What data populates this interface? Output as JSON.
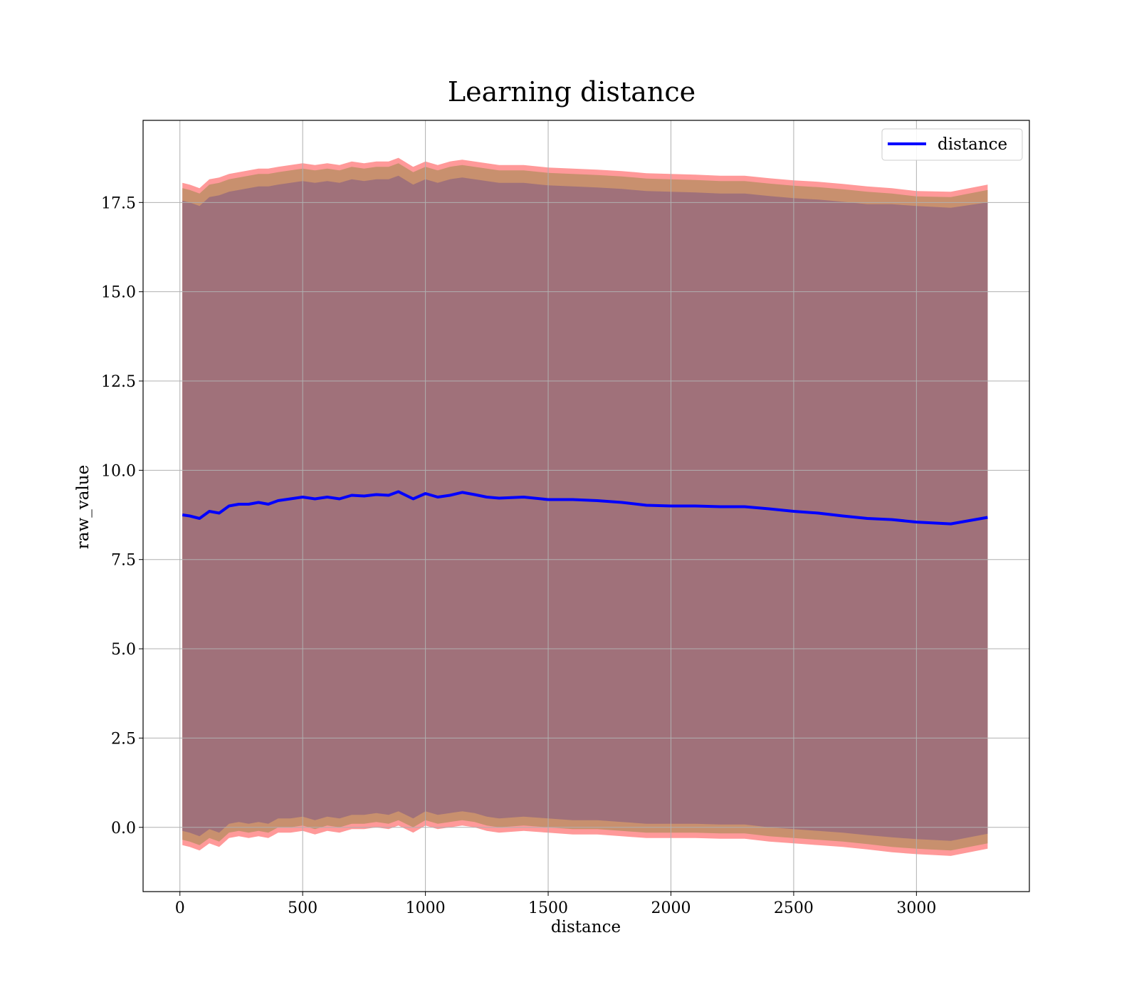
{
  "chart_data": {
    "type": "line",
    "title": "Learning distance",
    "xlabel": "distance",
    "ylabel": "raw_value",
    "xlim": [
      -150,
      3460
    ],
    "ylim": [
      -1.8,
      19.8
    ],
    "xticks": [
      0,
      500,
      1000,
      1500,
      2000,
      2500,
      3000
    ],
    "xtick_labels": [
      "0",
      "500",
      "1000",
      "1500",
      "2000",
      "2500",
      "3000"
    ],
    "yticks": [
      0.0,
      2.5,
      5.0,
      7.5,
      10.0,
      12.5,
      15.0,
      17.5
    ],
    "ytick_labels": [
      "0.0",
      "2.5",
      "5.0",
      "7.5",
      "10.0",
      "12.5",
      "15.0",
      "17.5"
    ],
    "grid": true,
    "legend": {
      "position": "upper right",
      "entries": [
        "distance"
      ]
    },
    "colors": {
      "line": "#0000ff",
      "band_outer": "#ff9999",
      "band_middle": "#c8906e",
      "band_inner": "#a0717a",
      "grid": "#b0b0b0"
    },
    "x": [
      10,
      40,
      80,
      120,
      160,
      200,
      240,
      280,
      320,
      360,
      400,
      450,
      500,
      550,
      600,
      650,
      700,
      750,
      800,
      850,
      890,
      950,
      1000,
      1050,
      1100,
      1150,
      1200,
      1250,
      1300,
      1400,
      1500,
      1600,
      1700,
      1800,
      1900,
      2000,
      2100,
      2200,
      2300,
      2400,
      2500,
      2600,
      2700,
      2800,
      2900,
      3000,
      3140,
      3290
    ],
    "series": [
      {
        "name": "distance",
        "values": [
          8.75,
          8.72,
          8.65,
          8.85,
          8.8,
          9.0,
          9.05,
          9.05,
          9.1,
          9.05,
          9.15,
          9.2,
          9.25,
          9.2,
          9.25,
          9.2,
          9.3,
          9.28,
          9.32,
          9.3,
          9.4,
          9.2,
          9.35,
          9.25,
          9.3,
          9.38,
          9.32,
          9.25,
          9.22,
          9.25,
          9.18,
          9.18,
          9.15,
          9.1,
          9.02,
          9.0,
          9.0,
          8.98,
          8.98,
          8.92,
          8.85,
          8.8,
          8.72,
          8.65,
          8.62,
          8.55,
          8.5,
          8.68
        ]
      }
    ],
    "bands": [
      {
        "color": "#ff9999",
        "upper": [
          18.05,
          18.0,
          17.9,
          18.15,
          18.2,
          18.3,
          18.35,
          18.4,
          18.45,
          18.45,
          18.5,
          18.55,
          18.6,
          18.55,
          18.6,
          18.55,
          18.65,
          18.6,
          18.65,
          18.65,
          18.75,
          18.5,
          18.65,
          18.55,
          18.65,
          18.7,
          18.65,
          18.6,
          18.55,
          18.55,
          18.48,
          18.45,
          18.42,
          18.38,
          18.32,
          18.3,
          18.28,
          18.25,
          18.25,
          18.18,
          18.12,
          18.08,
          18.02,
          17.95,
          17.9,
          17.82,
          17.8,
          18.0
        ],
        "lower": [
          -0.5,
          -0.55,
          -0.65,
          -0.45,
          -0.55,
          -0.3,
          -0.25,
          -0.3,
          -0.25,
          -0.3,
          -0.15,
          -0.15,
          -0.1,
          -0.2,
          -0.1,
          -0.15,
          -0.05,
          -0.05,
          0.0,
          -0.05,
          0.05,
          -0.15,
          0.05,
          -0.05,
          0.0,
          0.05,
          0.0,
          -0.1,
          -0.15,
          -0.1,
          -0.15,
          -0.2,
          -0.2,
          -0.25,
          -0.3,
          -0.3,
          -0.3,
          -0.32,
          -0.32,
          -0.4,
          -0.45,
          -0.5,
          -0.55,
          -0.62,
          -0.7,
          -0.75,
          -0.8,
          -0.6
        ]
      },
      {
        "color": "#c8906e",
        "upper": [
          17.9,
          17.85,
          17.75,
          18.0,
          18.05,
          18.15,
          18.2,
          18.25,
          18.3,
          18.3,
          18.35,
          18.4,
          18.45,
          18.4,
          18.45,
          18.4,
          18.5,
          18.45,
          18.5,
          18.5,
          18.6,
          18.35,
          18.5,
          18.4,
          18.5,
          18.55,
          18.5,
          18.45,
          18.4,
          18.4,
          18.33,
          18.3,
          18.27,
          18.23,
          18.17,
          18.15,
          18.13,
          18.1,
          18.1,
          18.03,
          17.97,
          17.93,
          17.87,
          17.8,
          17.75,
          17.67,
          17.65,
          17.85
        ],
        "lower": [
          -0.35,
          -0.4,
          -0.5,
          -0.3,
          -0.4,
          -0.15,
          -0.1,
          -0.15,
          -0.1,
          -0.15,
          0.0,
          0.0,
          0.05,
          -0.05,
          0.05,
          0.0,
          0.1,
          0.1,
          0.15,
          0.1,
          0.2,
          0.0,
          0.2,
          0.1,
          0.15,
          0.2,
          0.15,
          0.05,
          0.0,
          0.05,
          0.0,
          -0.05,
          -0.05,
          -0.1,
          -0.15,
          -0.15,
          -0.15,
          -0.17,
          -0.17,
          -0.25,
          -0.3,
          -0.35,
          -0.4,
          -0.47,
          -0.55,
          -0.6,
          -0.65,
          -0.45
        ]
      },
      {
        "color": "#a0717a",
        "upper": [
          17.55,
          17.5,
          17.4,
          17.65,
          17.7,
          17.8,
          17.85,
          17.9,
          17.95,
          17.95,
          18.0,
          18.05,
          18.1,
          18.05,
          18.1,
          18.05,
          18.15,
          18.1,
          18.15,
          18.15,
          18.25,
          18.0,
          18.15,
          18.05,
          18.15,
          18.2,
          18.15,
          18.1,
          18.05,
          18.05,
          17.98,
          17.95,
          17.92,
          17.88,
          17.82,
          17.8,
          17.78,
          17.75,
          17.75,
          17.68,
          17.62,
          17.58,
          17.52,
          17.45,
          17.45,
          17.4,
          17.35,
          17.5
        ],
        "lower": [
          -0.1,
          -0.15,
          -0.25,
          -0.05,
          -0.15,
          0.1,
          0.15,
          0.1,
          0.15,
          0.1,
          0.25,
          0.25,
          0.3,
          0.2,
          0.3,
          0.25,
          0.35,
          0.35,
          0.4,
          0.35,
          0.45,
          0.25,
          0.45,
          0.35,
          0.4,
          0.45,
          0.4,
          0.3,
          0.25,
          0.3,
          0.25,
          0.2,
          0.2,
          0.15,
          0.1,
          0.1,
          0.1,
          0.08,
          0.08,
          0.0,
          -0.05,
          -0.1,
          -0.15,
          -0.22,
          -0.28,
          -0.33,
          -0.38,
          -0.18
        ]
      }
    ]
  }
}
